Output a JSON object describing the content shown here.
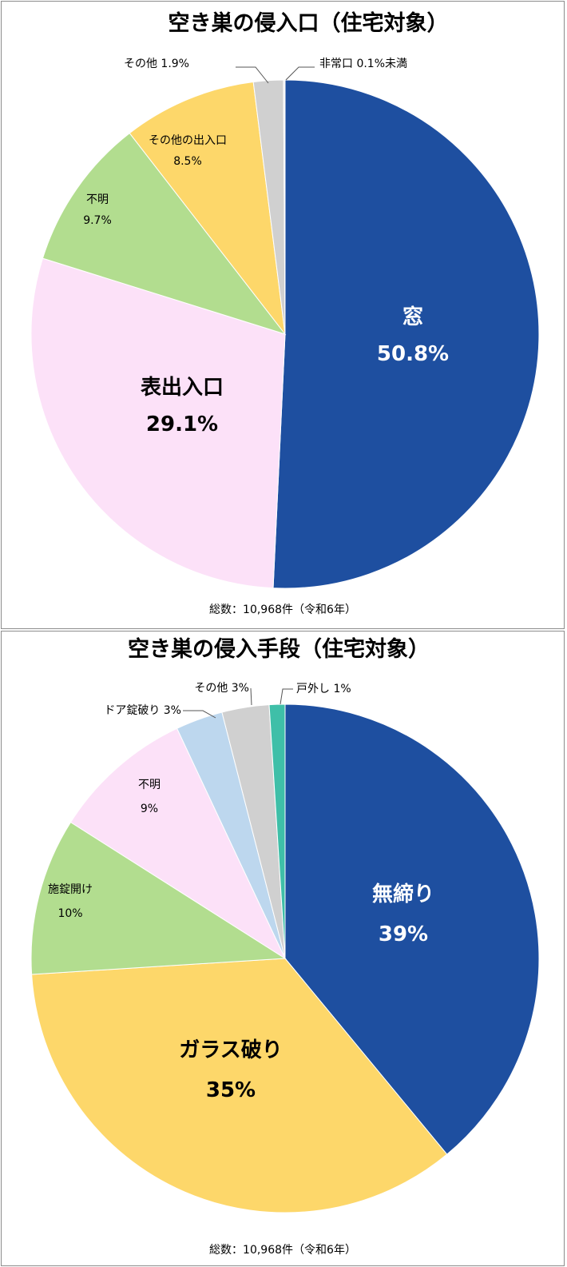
{
  "chart_data": [
    {
      "type": "pie",
      "title": "空き巣の侵入口（住宅対象）",
      "total": "総数：10,968件（令和6年）",
      "slices": [
        {
          "label": "窓",
          "value": 50.8,
          "value_label": "50.8%",
          "color": "#1e4fa0",
          "text_color": "#ffffff"
        },
        {
          "label": "表出入口",
          "value": 29.1,
          "value_label": "29.1%",
          "color": "#fce1f8",
          "text_color": "#000000"
        },
        {
          "label": "不明",
          "value": 9.7,
          "value_label": "9.7%",
          "color": "#b2dd8f",
          "text_color": "#000000"
        },
        {
          "label": "その他の出入口",
          "value": 8.5,
          "value_label": "8.5%",
          "color": "#fdd76a",
          "text_color": "#000000"
        },
        {
          "label": "その他",
          "value": 1.9,
          "value_label": "1.9%",
          "color": "#d0d0d0",
          "text_color": "#000000"
        },
        {
          "label": "非常口",
          "value": 0.1,
          "value_label": "0.1%未満",
          "color": "#f2f2f2",
          "text_color": "#000000"
        }
      ]
    },
    {
      "type": "pie",
      "title": "空き巣の侵入手段（住宅対象）",
      "total": "総数：10,968件（令和6年）",
      "slices": [
        {
          "label": "無締り",
          "value": 39,
          "value_label": "39%",
          "color": "#1e4fa0",
          "text_color": "#ffffff"
        },
        {
          "label": "ガラス破り",
          "value": 35,
          "value_label": "35%",
          "color": "#fdd76a",
          "text_color": "#000000"
        },
        {
          "label": "施錠開け",
          "value": 10,
          "value_label": "10%",
          "color": "#b2dd8f",
          "text_color": "#000000"
        },
        {
          "label": "不明",
          "value": 9,
          "value_label": "9%",
          "color": "#fce1f8",
          "text_color": "#000000"
        },
        {
          "label": "ドア錠破り",
          "value": 3,
          "value_label": "3%",
          "color": "#bdd7ee",
          "text_color": "#000000"
        },
        {
          "label": "その他",
          "value": 3,
          "value_label": "3%",
          "color": "#d0d0d0",
          "text_color": "#000000"
        },
        {
          "label": "戸外し",
          "value": 1,
          "value_label": "1%",
          "color": "#3fbfa8",
          "text_color": "#000000"
        }
      ]
    }
  ]
}
